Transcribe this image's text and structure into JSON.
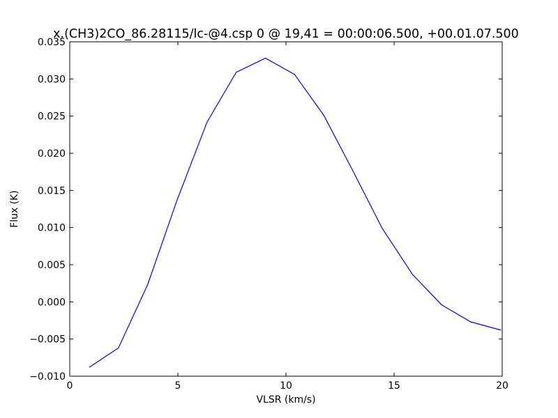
{
  "chart_data": {
    "type": "line",
    "title": "x.(CH3)2CO_86.28115/lc-@4.csp 0 @ 19,41 = 00:00:06.500, +00.01.07.500",
    "xlabel": "VLSR (km/s)",
    "ylabel": "Flux (K)",
    "xlim": [
      0,
      20
    ],
    "ylim": [
      -0.01,
      0.035
    ],
    "x_ticks": [
      0,
      5,
      10,
      15,
      20
    ],
    "x_tick_labels": [
      "0",
      "5",
      "10",
      "15",
      "20"
    ],
    "y_ticks": [
      -0.01,
      -0.005,
      0.0,
      0.005,
      0.01,
      0.015,
      0.02,
      0.025,
      0.03,
      0.035
    ],
    "y_tick_labels": [
      "−0.010",
      "−0.005",
      "0.000",
      "0.005",
      "0.010",
      "0.015",
      "0.020",
      "0.025",
      "0.030",
      "0.035"
    ],
    "grid": false,
    "line_color": "#0000ff",
    "series": [
      {
        "x": [
          0.9,
          2.25,
          3.6,
          4.95,
          6.35,
          7.7,
          9.05,
          10.4,
          11.75,
          13.1,
          14.45,
          15.85,
          17.2,
          18.55,
          19.95
        ],
        "values": [
          -0.0088,
          -0.0062,
          0.0023,
          0.0136,
          0.0242,
          0.0309,
          0.0328,
          0.0306,
          0.0251,
          0.0176,
          0.0099,
          0.0037,
          -0.0004,
          -0.0027,
          -0.0038
        ]
      }
    ]
  }
}
